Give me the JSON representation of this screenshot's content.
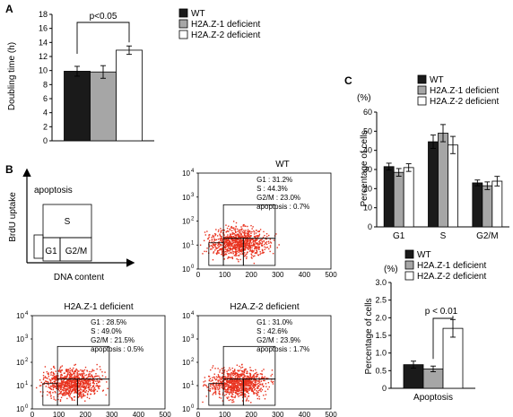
{
  "colors": {
    "wt": "#1a1a1a",
    "h2az1": "#a6a6a6",
    "h2az2": "#ffffff",
    "dots": "#e8321e"
  },
  "panel_letters": {
    "a": "A",
    "b": "B",
    "c": "C"
  },
  "legend": {
    "wt": "WT",
    "h2az1": "H2A.Z-1 deficient",
    "h2az2": "H2A.Z-2 deficient"
  },
  "chart_data": [
    {
      "type": "bar",
      "panel": "A",
      "ylabel": "Doubling time (h)",
      "ylim": [
        0,
        18
      ],
      "yticks": [
        "0",
        "2",
        "4",
        "6",
        "8",
        "10",
        "12",
        "14",
        "16",
        "18"
      ],
      "series": [
        {
          "name": "WT",
          "values": [
            9.9
          ],
          "error": [
            0.7
          ]
        },
        {
          "name": "H2A.Z-1 deficient",
          "values": [
            9.8
          ],
          "error": [
            0.9
          ]
        },
        {
          "name": "H2A.Z-2 deficient",
          "values": [
            12.9
          ],
          "error": [
            0.6
          ]
        }
      ],
      "annotation": "p<0.05"
    },
    {
      "type": "bar",
      "panel": "C-top",
      "ylabel": "Percentage of cells",
      "yunit": "(%)",
      "ylim": [
        0,
        60
      ],
      "yticks": [
        "0",
        "10",
        "20",
        "30",
        "40",
        "50",
        "60"
      ],
      "categories": [
        "G1",
        "S",
        "G2/M"
      ],
      "series": [
        {
          "name": "WT",
          "values": [
            31.5,
            44.5,
            23.0
          ],
          "error": [
            1.8,
            3.5,
            1.5
          ]
        },
        {
          "name": "H2A.Z-1 deficient",
          "values": [
            28.5,
            49.0,
            21.5
          ],
          "error": [
            2.0,
            4.5,
            2.0
          ]
        },
        {
          "name": "H2A.Z-2 deficient",
          "values": [
            31.0,
            42.8,
            23.9
          ],
          "error": [
            2.0,
            4.5,
            2.5
          ]
        }
      ]
    },
    {
      "type": "bar",
      "panel": "C-bottom",
      "ylabel": "Percentage of cells",
      "yunit": "(%)",
      "ylim": [
        0,
        3.0
      ],
      "yticks": [
        "0",
        "0.5",
        "1.0",
        "1.5",
        "2.0",
        "2.5",
        "3.0"
      ],
      "categories": [
        "Apoptosis"
      ],
      "series": [
        {
          "name": "WT",
          "values": [
            0.67
          ],
          "error": [
            0.1
          ]
        },
        {
          "name": "H2A.Z-1 deficient",
          "values": [
            0.55
          ],
          "error": [
            0.08
          ]
        },
        {
          "name": "H2A.Z-2 deficient",
          "values": [
            1.7
          ],
          "error": [
            0.25
          ]
        }
      ],
      "annotation": "p < 0.01"
    }
  ],
  "schematic": {
    "ylabel": "BrdU uptake",
    "xlabel": "DNA content",
    "apoptosis": "apoptosis",
    "s": "S",
    "g1": "G1",
    "g2m": "G2/M"
  },
  "flow": {
    "exp_labels": [
      "10",
      "10",
      "10",
      "10",
      "10"
    ],
    "exp_powers": [
      "0",
      "1",
      "2",
      "3",
      "4"
    ],
    "xticks": [
      "0",
      "100",
      "200",
      "300",
      "400",
      "500"
    ],
    "plots": [
      {
        "title": "WT",
        "stats": [
          "G1 : 31.2%",
          "S : 44.3%",
          "G2/M : 23.0%",
          "apoptosis : 0.7%"
        ]
      },
      {
        "title": "H2A.Z-1 deficient",
        "stats": [
          "G1 : 28.5%",
          "S : 49.0%",
          "G2/M : 21.5%",
          "apoptosis : 0.5%"
        ]
      },
      {
        "title": "H2A.Z-2 deficient",
        "stats": [
          "G1 : 31.0%",
          "S : 42.6%",
          "G2/M : 23.9%",
          "apoptosis : 1.7%"
        ]
      }
    ]
  }
}
